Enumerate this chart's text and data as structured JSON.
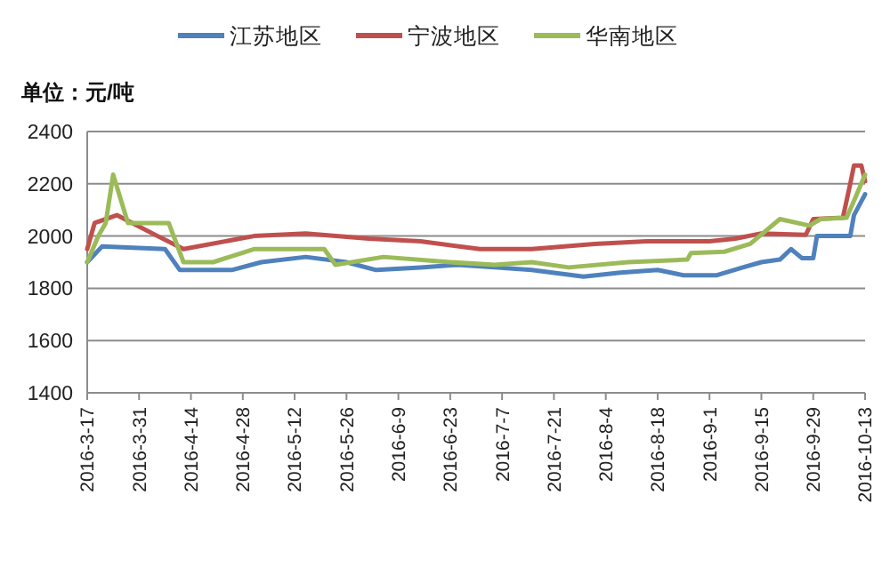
{
  "chart_data": {
    "type": "line",
    "ylabel": "单位：元/吨",
    "legend": "top",
    "grid": "y",
    "line_style": "solid",
    "ylim": [
      1400,
      2400
    ],
    "yticks": [
      1400,
      1600,
      1800,
      2000,
      2200,
      2400
    ],
    "xlim": [
      "2016-03-17",
      "2016-10-13"
    ],
    "xticks": [
      {
        "value": "2016-03-17",
        "label": "2016-3-17"
      },
      {
        "value": "2016-03-31",
        "label": "2016-3-31"
      },
      {
        "value": "2016-04-14",
        "label": "2016-4-14"
      },
      {
        "value": "2016-04-28",
        "label": "2016-4-28"
      },
      {
        "value": "2016-05-12",
        "label": "2016-5-12"
      },
      {
        "value": "2016-05-26",
        "label": "2016-5-26"
      },
      {
        "value": "2016-06-09",
        "label": "2016-6-9"
      },
      {
        "value": "2016-06-23",
        "label": "2016-6-23"
      },
      {
        "value": "2016-07-07",
        "label": "2016-7-7"
      },
      {
        "value": "2016-07-21",
        "label": "2016-7-21"
      },
      {
        "value": "2016-08-04",
        "label": "2016-8-4"
      },
      {
        "value": "2016-08-18",
        "label": "2016-8-18"
      },
      {
        "value": "2016-09-01",
        "label": "2016-9-1"
      },
      {
        "value": "2016-09-15",
        "label": "2016-9-15"
      },
      {
        "value": "2016-09-29",
        "label": "2016-9-29"
      },
      {
        "value": "2016-10-13",
        "label": "2016-10-13"
      }
    ],
    "series": [
      {
        "name": "江苏地区",
        "color": "#4f81bd",
        "x": [
          "2016-03-17",
          "2016-03-21",
          "2016-04-07",
          "2016-04-11",
          "2016-04-25",
          "2016-05-03",
          "2016-05-15",
          "2016-05-26",
          "2016-06-03",
          "2016-06-15",
          "2016-06-25",
          "2016-07-05",
          "2016-07-15",
          "2016-07-29",
          "2016-08-08",
          "2016-08-18",
          "2016-08-25",
          "2016-09-03",
          "2016-09-10",
          "2016-09-15",
          "2016-09-20",
          "2016-09-23",
          "2016-09-26",
          "2016-09-29",
          "2016-09-30",
          "2016-10-09",
          "2016-10-10",
          "2016-10-13"
        ],
        "values": [
          1900,
          1960,
          1950,
          1870,
          1870,
          1900,
          1920,
          1900,
          1870,
          1880,
          1890,
          1880,
          1870,
          1845,
          1860,
          1870,
          1850,
          1850,
          1880,
          1900,
          1910,
          1950,
          1915,
          1915,
          2000,
          2000,
          2080,
          2160
        ]
      },
      {
        "name": "宁波地区",
        "color": "#c0504d",
        "x": [
          "2016-03-17",
          "2016-03-19",
          "2016-03-25",
          "2016-04-05",
          "2016-04-12",
          "2016-05-01",
          "2016-05-15",
          "2016-06-01",
          "2016-06-15",
          "2016-07-01",
          "2016-07-15",
          "2016-08-01",
          "2016-08-15",
          "2016-09-01",
          "2016-09-08",
          "2016-09-15",
          "2016-09-27",
          "2016-09-29",
          "2016-10-07",
          "2016-10-09",
          "2016-10-10",
          "2016-10-12",
          "2016-10-13"
        ],
        "values": [
          1950,
          2050,
          2080,
          2000,
          1950,
          2000,
          2010,
          1990,
          1980,
          1950,
          1950,
          1970,
          1980,
          1980,
          1990,
          2010,
          2005,
          2065,
          2070,
          2200,
          2270,
          2270,
          2210
        ]
      },
      {
        "name": "华南地区",
        "color": "#9bbb59",
        "x": [
          "2016-03-17",
          "2016-03-20",
          "2016-03-22",
          "2016-03-24",
          "2016-03-28",
          "2016-04-08",
          "2016-04-12",
          "2016-04-20",
          "2016-05-01",
          "2016-05-20",
          "2016-05-23",
          "2016-06-05",
          "2016-06-23",
          "2016-07-05",
          "2016-07-15",
          "2016-07-25",
          "2016-08-10",
          "2016-08-26",
          "2016-08-27",
          "2016-09-05",
          "2016-09-12",
          "2016-09-20",
          "2016-09-28",
          "2016-10-01",
          "2016-10-08",
          "2016-10-10",
          "2016-10-13"
        ],
        "values": [
          1900,
          2000,
          2050,
          2235,
          2050,
          2050,
          1900,
          1900,
          1950,
          1950,
          1890,
          1920,
          1900,
          1890,
          1900,
          1880,
          1900,
          1910,
          1935,
          1940,
          1970,
          2065,
          2040,
          2065,
          2070,
          2135,
          2235
        ]
      }
    ]
  }
}
